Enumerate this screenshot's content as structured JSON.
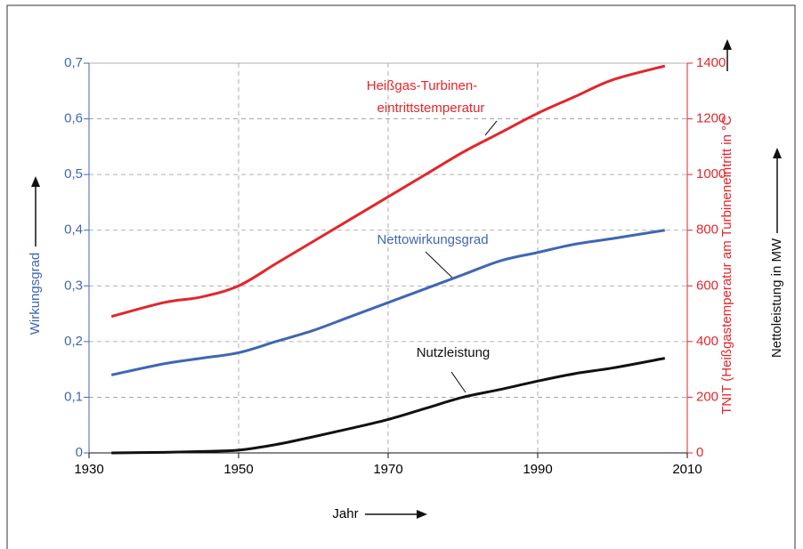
{
  "chart_data": {
    "type": "line",
    "x_label": "Jahr",
    "y_label": "Wirkungsgrad",
    "y2_label": "TNIT (Heißgastemperatur am Turbineneintritt in °C",
    "y3_label": "Nettoleistung in MW",
    "x": [
      1933,
      1940,
      1945,
      1950,
      1955,
      1960,
      1965,
      1970,
      1975,
      1980,
      1985,
      1990,
      1995,
      2000,
      2007
    ],
    "xlim": [
      1930,
      2010
    ],
    "xticks": [
      1930,
      1950,
      1970,
      1990,
      2010
    ],
    "ylim": [
      0,
      0.7
    ],
    "yticks": [
      0,
      {
        "value": 0.1,
        "label": "0,1"
      },
      {
        "value": 0.2,
        "label": "0,2"
      },
      {
        "value": 0.3,
        "label": "0,3"
      },
      {
        "value": 0.4,
        "label": "0,4"
      },
      {
        "value": 0.5,
        "label": "0,5"
      },
      {
        "value": 0.6,
        "label": "0,6"
      },
      {
        "value": 0.7,
        "label": "0,7"
      }
    ],
    "y2lim": [
      0,
      1400
    ],
    "y2ticks": [
      0,
      200,
      400,
      600,
      800,
      1000,
      1200,
      1400
    ],
    "grid": true,
    "series": [
      {
        "name": "Heißgas-Turbinen-eintrittstemperatur",
        "label_lines": [
          "Heißgas-Turbinen-",
          "eintrittstemperatur"
        ],
        "color": "#e3262b",
        "axis": "y2",
        "values": [
          490,
          540,
          560,
          600,
          680,
          760,
          840,
          920,
          1000,
          1080,
          1150,
          1220,
          1280,
          1340,
          1390
        ]
      },
      {
        "name": "Nettowirkungsgrad",
        "color": "#3f67b1",
        "axis": "y",
        "values": [
          0.14,
          0.16,
          0.17,
          0.18,
          0.2,
          0.22,
          0.245,
          0.27,
          0.295,
          0.32,
          0.345,
          0.36,
          0.375,
          0.385,
          0.4
        ]
      },
      {
        "name": "Nutzleistung",
        "color": "#111111",
        "axis": "y2",
        "values": [
          0,
          2,
          5,
          10,
          30,
          58,
          88,
          120,
          160,
          200,
          228,
          258,
          285,
          305,
          340
        ]
      }
    ]
  }
}
